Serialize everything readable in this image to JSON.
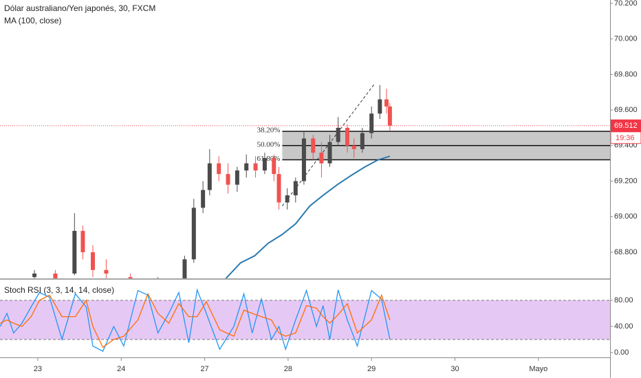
{
  "chart_data": [
    {
      "type": "candlestick",
      "title": "Dólar australiano/Yen japonés, 30, FXCM",
      "subtitle": "MA (100, close)",
      "x": [
        -0.04,
        0.21,
        0.44,
        0.54,
        0.66,
        0.82,
        1.11,
        1.44,
        1.76,
        1.87,
        1.98,
        2.06,
        2.17,
        2.28,
        2.39,
        2.5,
        2.61,
        2.72,
        2.83,
        2.89,
        2.99,
        3.09,
        3.19,
        3.3,
        3.4,
        3.5,
        3.6,
        3.71,
        3.79,
        3.89,
        4.0,
        4.1,
        4.18,
        4.22
      ],
      "open": [
        68.66,
        68.68,
        68.68,
        68.92,
        68.8,
        68.7,
        68.66,
        68.62,
        68.64,
        68.76,
        69.05,
        69.15,
        69.3,
        69.24,
        69.18,
        69.26,
        69.3,
        69.26,
        69.33,
        69.24,
        69.08,
        69.12,
        69.2,
        69.44,
        69.36,
        69.3,
        69.42,
        69.5,
        69.4,
        69.38,
        69.47,
        69.58,
        69.66,
        69.62
      ],
      "high": [
        68.7,
        68.7,
        69.02,
        68.95,
        68.84,
        68.76,
        68.68,
        68.66,
        68.78,
        69.1,
        69.2,
        69.38,
        69.34,
        69.3,
        69.28,
        69.35,
        69.34,
        69.36,
        69.35,
        69.28,
        69.16,
        69.22,
        69.48,
        69.46,
        69.42,
        69.46,
        69.56,
        69.52,
        69.44,
        69.5,
        69.62,
        69.74,
        69.72,
        69.64
      ],
      "low": [
        68.63,
        68.64,
        68.67,
        68.76,
        68.66,
        68.64,
        68.6,
        68.58,
        68.63,
        68.74,
        69.02,
        69.12,
        69.2,
        69.13,
        69.14,
        69.22,
        69.22,
        69.24,
        69.2,
        69.04,
        69.04,
        69.08,
        69.18,
        69.32,
        69.22,
        69.28,
        69.4,
        69.36,
        69.33,
        69.36,
        69.44,
        69.55,
        69.58,
        69.48
      ],
      "close": [
        68.68,
        68.65,
        68.92,
        68.8,
        68.7,
        68.68,
        68.62,
        68.64,
        68.76,
        69.05,
        69.15,
        69.3,
        69.24,
        69.18,
        69.26,
        69.3,
        69.26,
        69.33,
        69.24,
        69.08,
        69.12,
        69.2,
        69.44,
        69.36,
        69.3,
        69.42,
        69.5,
        69.4,
        69.38,
        69.47,
        69.58,
        69.66,
        69.62,
        69.512
      ],
      "up_color": "#4a4a4a",
      "down_color": "#ef5350",
      "ma": {
        "color": "#2a7ab0",
        "x": [
          2.25,
          2.43,
          2.6,
          2.76,
          2.93,
          3.09,
          3.26,
          3.42,
          3.59,
          3.75,
          3.92,
          4.08,
          4.22
        ],
        "values": [
          68.65,
          68.74,
          68.78,
          68.85,
          68.9,
          68.96,
          69.06,
          69.12,
          69.18,
          69.23,
          69.28,
          69.32,
          69.34
        ]
      },
      "fib": {
        "x_start": 2.93,
        "level_labels": [
          "38.20%",
          "50.00%",
          "61.80%"
        ],
        "level_prices": [
          69.48,
          69.4,
          69.32
        ],
        "fill_color": "#c8c8c8"
      },
      "trendline": {
        "x": [
          2.93,
          4.04
        ],
        "values": [
          69.06,
          69.75
        ]
      },
      "countdown": "19:36",
      "price_color": "#f23645",
      "xlim": [
        -0.453,
        6.859
      ],
      "ylim": [
        68.653,
        70.219
      ],
      "yticks": [
        {
          "value": 68.8,
          "label": "68.800"
        },
        {
          "value": 69.0,
          "label": "69.000"
        },
        {
          "value": 69.2,
          "label": "69.200"
        },
        {
          "value": 69.4,
          "label": "69.400"
        },
        {
          "value": 69.6,
          "label": "69.600"
        },
        {
          "value": 69.8,
          "label": "69.800"
        },
        {
          "value": 70.0,
          "label": "70.000"
        },
        {
          "value": 70.2,
          "label": "70.200"
        }
      ]
    },
    {
      "type": "line",
      "title": "Stoch RSI (3, 3, 14, 14, close)",
      "series": [
        {
          "color": "#2196f3",
          "x": [
            -0.45,
            -0.37,
            -0.29,
            -0.19,
            -0.08,
            0.02,
            0.14,
            0.29,
            0.45,
            0.58,
            0.66,
            0.78,
            0.91,
            1.03,
            1.2,
            1.32,
            1.44,
            1.57,
            1.69,
            1.81,
            1.91,
            2.02,
            2.18,
            2.35,
            2.47,
            2.57,
            2.68,
            2.8,
            2.89,
            2.97,
            3.09,
            3.22,
            3.34,
            3.42,
            3.5,
            3.6,
            3.71,
            3.83,
            4.0,
            4.12,
            4.22
          ],
          "values": [
            40,
            60,
            30,
            45,
            70,
            92,
            85,
            20,
            90,
            70,
            10,
            2,
            40,
            10,
            95,
            88,
            30,
            60,
            92,
            15,
            96,
            60,
            5,
            40,
            90,
            30,
            82,
            20,
            40,
            5,
            50,
            95,
            40,
            72,
            20,
            96,
            50,
            10,
            95,
            82,
            20
          ]
        },
        {
          "color": "#ff6d00",
          "x": [
            -0.45,
            -0.37,
            -0.29,
            -0.19,
            -0.08,
            0.02,
            0.14,
            0.29,
            0.45,
            0.58,
            0.66,
            0.78,
            0.91,
            1.03,
            1.2,
            1.32,
            1.44,
            1.57,
            1.69,
            1.81,
            1.91,
            2.02,
            2.18,
            2.35,
            2.47,
            2.57,
            2.68,
            2.8,
            2.89,
            2.97,
            3.09,
            3.22,
            3.34,
            3.42,
            3.5,
            3.6,
            3.71,
            3.83,
            4.0,
            4.12,
            4.22
          ],
          "values": [
            45,
            50,
            45,
            40,
            55,
            80,
            88,
            55,
            55,
            80,
            40,
            8,
            20,
            25,
            50,
            90,
            60,
            45,
            75,
            55,
            55,
            78,
            35,
            25,
            65,
            60,
            55,
            50,
            30,
            25,
            30,
            72,
            68,
            55,
            45,
            58,
            75,
            30,
            50,
            88,
            50
          ]
        }
      ],
      "bands": [
        20,
        80
      ],
      "band_color": "#e6c8f5",
      "xlim": [
        -0.453,
        6.859
      ],
      "ylim": [
        -7.4,
        111.6
      ],
      "yticks": [
        {
          "value": 0,
          "label": "0.00"
        },
        {
          "value": 40,
          "label": "40.00"
        },
        {
          "value": 80,
          "label": "80.00"
        }
      ],
      "xticks": [
        {
          "value": 0,
          "label": "23"
        },
        {
          "value": 1,
          "label": "24"
        },
        {
          "value": 2,
          "label": "27"
        },
        {
          "value": 3,
          "label": "28"
        },
        {
          "value": 4,
          "label": "29"
        },
        {
          "value": 5,
          "label": "30"
        },
        {
          "value": 6,
          "label": "Mayo"
        }
      ]
    }
  ]
}
